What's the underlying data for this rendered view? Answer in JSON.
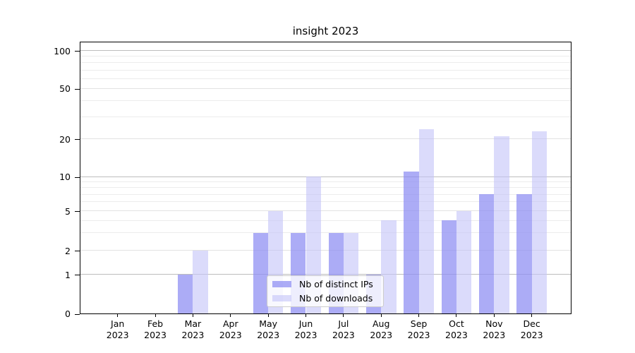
{
  "chart_data": {
    "type": "bar",
    "title": "insight 2023",
    "categories": [
      "Jan",
      "Feb",
      "Mar",
      "Apr",
      "May",
      "Jun",
      "Jul",
      "Aug",
      "Sep",
      "Oct",
      "Nov",
      "Dec"
    ],
    "year_suffix": "2023",
    "series": [
      {
        "name": "Nb of distinct IPs",
        "color": "#acacf5",
        "values": [
          0,
          0,
          1,
          0,
          3,
          3,
          3,
          1,
          11,
          4,
          7,
          7
        ]
      },
      {
        "name": "Nb of downloads",
        "color": "#dcdcfa",
        "values": [
          0,
          0,
          2,
          0,
          5,
          10,
          3,
          4,
          24,
          5,
          21,
          23
        ]
      }
    ],
    "yticks": [
      0,
      1,
      2,
      5,
      10,
      20,
      50,
      100
    ],
    "minor_ticks": [
      3,
      4,
      6,
      7,
      8,
      9,
      30,
      40,
      60,
      70,
      80,
      90
    ],
    "decade_ticks": [
      1,
      10,
      100
    ],
    "scale": "symlog-like (labeled 0,1,2,5,10,20,50,100)",
    "xlabel": "",
    "ylabel": "",
    "grid": "both",
    "legend_position": "lower center",
    "axis_color": "#000000",
    "major_grid_color": "#bdbdbd",
    "minor_grid_color": "#ececec"
  }
}
